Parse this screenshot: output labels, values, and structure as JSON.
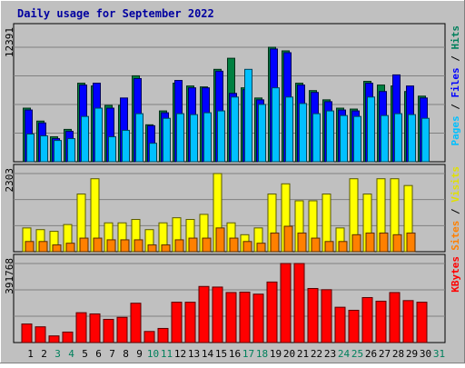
{
  "colors": {
    "frame_bg": "#c0c0c0",
    "title": "#0000a0",
    "pages_bar": "#00c0ff",
    "files_bar": "#0000ff",
    "hits_bar": "#008040",
    "visits_bar": "#ffff00",
    "sites_bar": "#ff8000",
    "kbytes_bar": "#ff0000",
    "legend_pages": "#00c0ff",
    "legend_files": "#0000ff",
    "legend_hits": "#00805c",
    "legend_visits": "#e0e000",
    "legend_sites": "#ff8000",
    "legend_kbytes": "#ff0000",
    "weekend_label": "#00805c",
    "weekday_label": "#000000"
  },
  "chart_data": {
    "type": "bar",
    "title": "Daily usage for September 2022",
    "categories": [
      "1",
      "2",
      "3",
      "4",
      "5",
      "6",
      "7",
      "8",
      "9",
      "10",
      "11",
      "12",
      "13",
      "14",
      "15",
      "16",
      "17",
      "18",
      "19",
      "20",
      "21",
      "22",
      "23",
      "24",
      "25",
      "26",
      "27",
      "28",
      "29",
      "30",
      "31"
    ],
    "weekend_days": [
      "3",
      "4",
      "10",
      "11",
      "17",
      "18",
      "24",
      "25",
      "31"
    ],
    "panels": [
      {
        "name": "hits-files-pages",
        "ymax_label": "12391",
        "ylim": [
          0,
          12391
        ],
        "legend": [
          {
            "text": "Pages",
            "color_key": "legend_pages"
          },
          {
            "text": " / ",
            "color_key": "weekday_label"
          },
          {
            "text": "Files",
            "color_key": "legend_files"
          },
          {
            "text": " / ",
            "color_key": "weekday_label"
          },
          {
            "text": "Hits",
            "color_key": "legend_hits"
          }
        ],
        "series": [
          {
            "name": "Hits",
            "color_key": "hits_bar",
            "values": [
              5800,
              4400,
              2700,
              3500,
              8500,
              8200,
              6100,
              6100,
              9300,
              4000,
              5500,
              8500,
              8200,
              8100,
              10000,
              11200,
              8000,
              6900,
              12391,
              12000,
              8500,
              7700,
              6700,
              5800,
              5700,
              8700,
              8300,
              8200,
              7600,
              7100,
              0
            ]
          },
          {
            "name": "Files",
            "color_key": "files_bar",
            "values": [
              5600,
              4200,
              2500,
              3300,
              8300,
              8500,
              5800,
              6900,
              9000,
              3900,
              5300,
              8800,
              8000,
              8000,
              9800,
              7400,
              7800,
              6700,
              12200,
              11800,
              8300,
              7500,
              6500,
              5600,
              5500,
              8500,
              7600,
              9400,
              8200,
              6900,
              0
            ]
          },
          {
            "name": "Pages",
            "color_key": "pages_bar",
            "values": [
              3000,
              2800,
              2300,
              2500,
              4900,
              5800,
              2700,
              3400,
              5200,
              2000,
              4700,
              5200,
              5100,
              5300,
              5500,
              7000,
              10000,
              6200,
              8000,
              7000,
              6300,
              5200,
              5500,
              5000,
              4900,
              7000,
              5000,
              5200,
              5100,
              4700,
              0
            ]
          }
        ]
      },
      {
        "name": "visits-sites",
        "ymax_label": "2303",
        "ylim": [
          0,
          2303
        ],
        "legend": [
          {
            "text": "Sites",
            "color_key": "legend_sites"
          },
          {
            "text": " / ",
            "color_key": "weekday_label"
          },
          {
            "text": "Visits",
            "color_key": "legend_visits"
          }
        ],
        "series": [
          {
            "name": "Visits",
            "color_key": "visits_bar",
            "values": [
              700,
              650,
              600,
              800,
              1700,
              2150,
              850,
              850,
              950,
              650,
              850,
              1000,
              950,
              1100,
              2303,
              850,
              500,
              700,
              1700,
              2000,
              1500,
              1500,
              1700,
              700,
              2150,
              1700,
              2150,
              2150,
              1950,
              0,
              0
            ]
          },
          {
            "name": "Sites",
            "color_key": "sites_bar",
            "values": [
              300,
              300,
              200,
              250,
              400,
              400,
              350,
              350,
              350,
              200,
              200,
              350,
              400,
              400,
              700,
              400,
              300,
              250,
              550,
              750,
              550,
              400,
              300,
              300,
              500,
              550,
              550,
              500,
              550,
              0,
              0
            ]
          }
        ]
      },
      {
        "name": "kbytes",
        "ymax_label": "391768",
        "ylim": [
          0,
          391768
        ],
        "legend": [
          {
            "text": "KBytes",
            "color_key": "legend_kbytes"
          }
        ],
        "series": [
          {
            "name": "KBytes",
            "color_key": "kbytes_bar",
            "values": [
              92000,
              78000,
              33000,
              52000,
              148000,
              142000,
              115000,
              125000,
              195000,
              55000,
              70000,
              200000,
              200000,
              278000,
              275000,
              248000,
              250000,
              240000,
              300000,
              391768,
              391768,
              268000,
              262000,
              175000,
              160000,
              223000,
              205000,
              248000,
              208000,
              200000,
              0
            ]
          }
        ]
      }
    ]
  }
}
